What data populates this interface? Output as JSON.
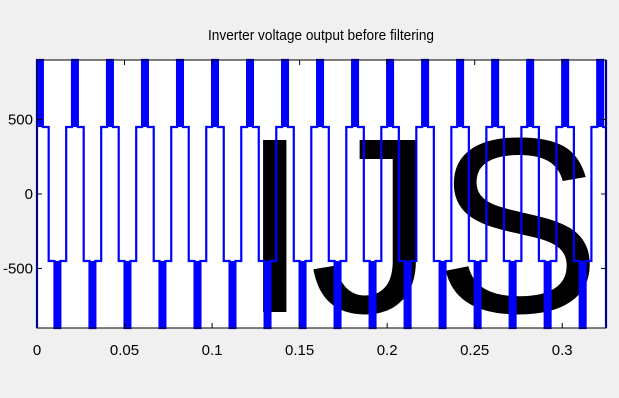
{
  "chart_data": {
    "type": "line",
    "title": "Inverter voltage output before filtering",
    "xlabel": "",
    "ylabel": "",
    "xlim": [
      0,
      0.325
    ],
    "ylim": [
      -900,
      900
    ],
    "x_ticks": [
      "0",
      "0.05",
      "0.1",
      "0.15",
      "0.2",
      "0.25",
      "0.3"
    ],
    "x_tick_values": [
      0,
      0.05,
      0.1,
      0.15,
      0.2,
      0.25,
      0.3
    ],
    "y_ticks": [
      "500",
      "0",
      "-500"
    ],
    "y_tick_values": [
      500,
      0,
      -500
    ],
    "grid": false,
    "legend": "none",
    "series": [
      {
        "color": "#0000ff",
        "fundamental_hz": 50,
        "phase_deg": 60,
        "levels": [
          {
            "phase_from_deg": 0,
            "phase_to_deg": 60,
            "value": 450
          },
          {
            "phase_from_deg": 60,
            "phase_to_deg": 120,
            "value": 900,
            "pwm": true
          },
          {
            "phase_from_deg": 120,
            "phase_to_deg": 180,
            "value": 450
          },
          {
            "phase_from_deg": 180,
            "phase_to_deg": 240,
            "value": -450
          },
          {
            "phase_from_deg": 240,
            "phase_to_deg": 300,
            "value": -900,
            "pwm": true
          },
          {
            "phase_from_deg": 300,
            "phase_to_deg": 360,
            "value": -450
          }
        ],
        "switching_between": [
          -450,
          450
        ]
      }
    ],
    "watermark": "IJS",
    "watermark_color": "#d3d3d3"
  }
}
